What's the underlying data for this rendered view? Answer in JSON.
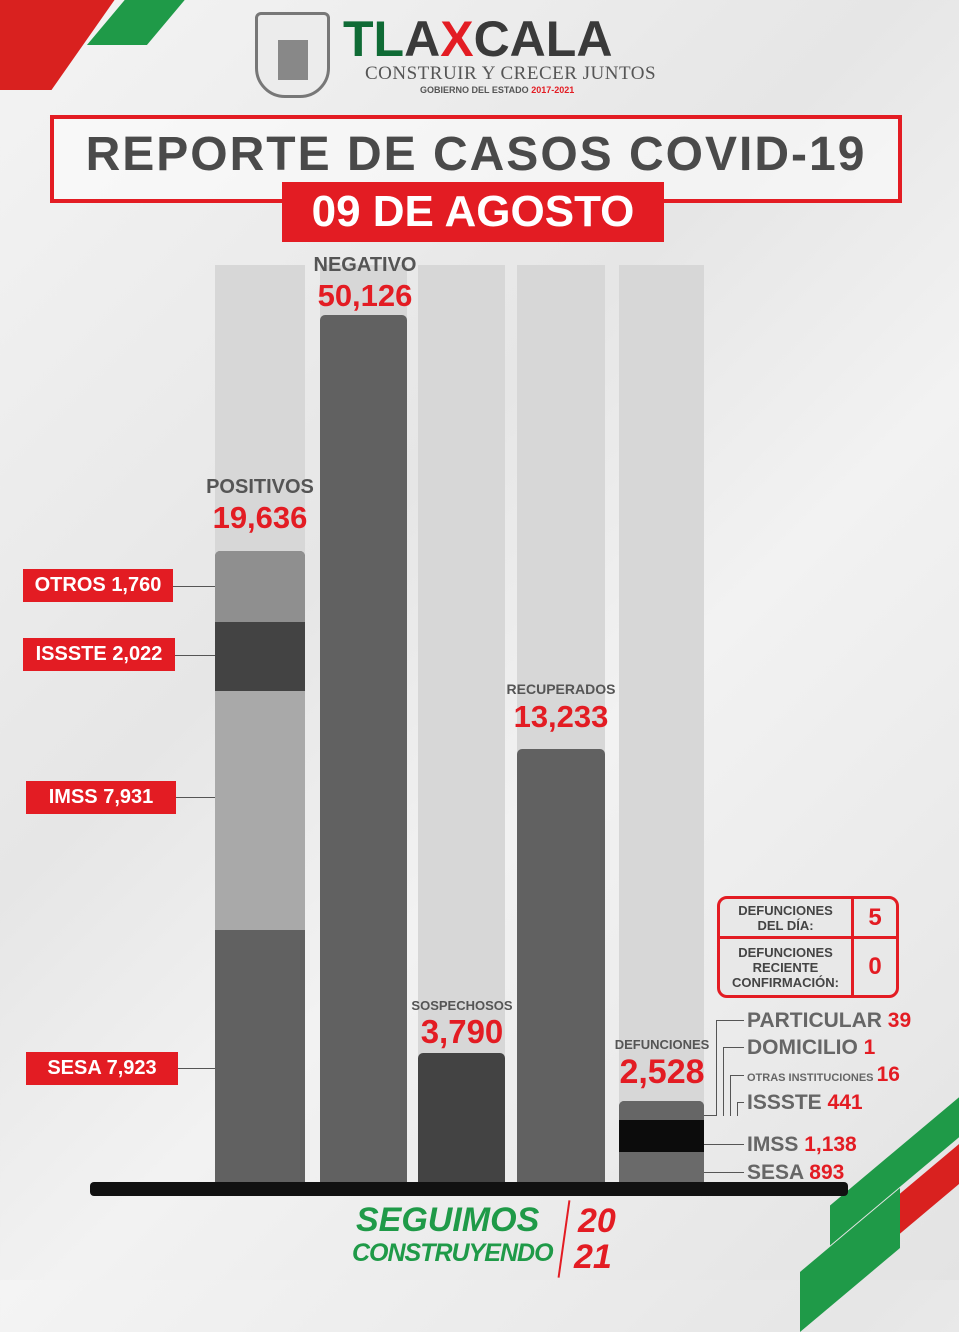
{
  "header": {
    "logo_text": "TLAXCALA",
    "logo_parts": [
      "TL",
      "A",
      "X",
      "CALA"
    ],
    "slogan": "CONSTRUIR Y CRECER JUNTOS",
    "government": "GOBIERNO DEL ESTADO",
    "government_years": "2017-2021",
    "title": "REPORTE DE CASOS COVID-19",
    "date": "09 DE AGOSTO"
  },
  "chart_data": {
    "type": "bar",
    "categories": [
      "POSITIVOS",
      "NEGATIVO",
      "SOSPECHOSOS",
      "RECUPERADOS",
      "DEFUNCIONES"
    ],
    "values": [
      19636,
      50126,
      3790,
      13233,
      2528
    ],
    "value_labels": [
      "19,636",
      "50,126",
      "3,790",
      "13,233",
      "2,528"
    ],
    "positivos_breakdown": [
      {
        "name": "OTROS",
        "value": 1760,
        "label": "1,760"
      },
      {
        "name": "ISSSTE",
        "value": 2022,
        "label": "2,022"
      },
      {
        "name": "IMSS",
        "value": 7931,
        "label": "7,931"
      },
      {
        "name": "SESA",
        "value": 7923,
        "label": "7,923"
      }
    ],
    "defunciones_breakdown": [
      {
        "name": "PARTICULAR",
        "label": "39",
        "value": 39
      },
      {
        "name": "DOMICILIO",
        "label": "1",
        "value": 1
      },
      {
        "name": "OTRAS INSTITUCIONES",
        "label": "16",
        "value": 16
      },
      {
        "name": "ISSSTE",
        "label": "441",
        "value": 441
      },
      {
        "name": "IMSS",
        "label": "1,138",
        "value": 1138
      },
      {
        "name": "SESA",
        "label": "893",
        "value": 893
      }
    ]
  },
  "deaths_table": {
    "rows": [
      {
        "label": "DEFUNCIONES DEL DÍA:",
        "value": "5"
      },
      {
        "label": "DEFUNCIONES RECIENTE CONFIRMACIÓN:",
        "value": "0"
      }
    ]
  },
  "footer": {
    "line1": "SEGUIMOS",
    "line2": "CONSTRUYENDO",
    "year1": "20",
    "year2": "21"
  },
  "colors": {
    "red": "#e31c23",
    "green": "#1f9a48",
    "bar": "#616161"
  }
}
